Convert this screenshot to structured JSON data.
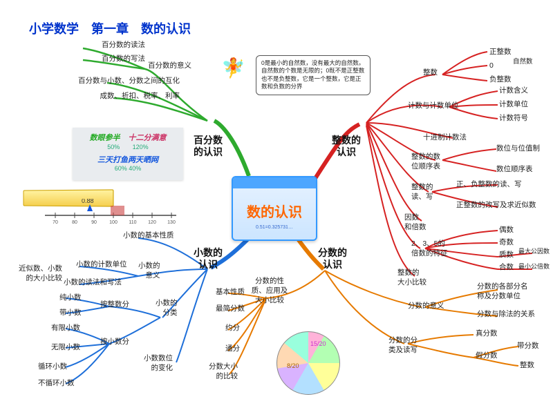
{
  "title": "小学数学　第一章　数的认识",
  "center": {
    "label": "数的认识",
    "formula": "0.51=0.325731…"
  },
  "callout": "0是最小的自然数，没有最大的自然数。自然数的个数是无限的；0既不是正整数也不是负整数，它是一个整数，它是正数和负数的分界",
  "idiom": {
    "a": "数眼参半",
    "a_pct": "50%",
    "b": "十二分满意",
    "b_pct": "120%",
    "c": "三天打鱼两天晒网",
    "c_pct": "60%  40%"
  },
  "number_line": {
    "mark_label": "0.88",
    "ticks": [
      "70",
      "80",
      "90",
      "100",
      "110",
      "120",
      "130"
    ]
  },
  "colors": {
    "green": "#2eaa2e",
    "red": "#d62222",
    "blue": "#1e6fd9",
    "orange": "#e67a00"
  },
  "branches": {
    "percent": {
      "label": "百分数\n的认识",
      "children": [
        {
          "label": "百分数的意义",
          "sub": [
            "百分数的读法",
            "百分数的写法"
          ]
        },
        {
          "label": "百分数与小数、分数之间的互化"
        },
        {
          "label": "成数、折扣、税率、利率"
        }
      ]
    },
    "integer": {
      "label": "整数的\n认识",
      "children": [
        {
          "label": "整数",
          "sub": [
            "正整数",
            "0",
            "负整数"
          ],
          "note": "自然数"
        },
        {
          "label": "计数与计数单位",
          "sub": [
            "计数含义",
            "计数单位",
            "计数符号"
          ]
        },
        {
          "label": "十进制计数法"
        },
        {
          "label": "整数的数\n位顺序表",
          "sub": [
            "数位与位值制",
            "数位顺序表"
          ]
        },
        {
          "label": "整数的\n读、写",
          "sub": [
            "正、负整数的读、写",
            "正整数的改写及求近似数"
          ]
        },
        {
          "label": "因数\n和倍数"
        },
        {
          "label": "2、3、5的\n倍数的特征",
          "sub": [
            "偶数",
            "奇数",
            "质数",
            "合数"
          ],
          "note": [
            "最大公因数",
            "最小公倍数"
          ]
        },
        {
          "label": "整数的\n大小比较"
        }
      ]
    },
    "decimal": {
      "label": "小数的\n认识",
      "children": [
        {
          "label": "小数的基本性质"
        },
        {
          "label": "小数的\n意义",
          "sub": [
            "小数的计数单位",
            "小数的读法和写法"
          ],
          "note": "近似数、小数\n的大小比较"
        },
        {
          "label": "小数的\n分类",
          "sub": [
            {
              "g": "按整数分",
              "items": [
                "纯小数",
                "带小数"
              ]
            },
            {
              "g": "按小数分",
              "items": [
                "有限小数",
                "无限小数",
                "循环小数",
                "不循环小数"
              ]
            }
          ]
        },
        {
          "label": "小数数位\n的变化"
        }
      ]
    },
    "fraction": {
      "label": "分数的\n认识",
      "children": [
        {
          "label": "分数的性\n质、应用及\n大小比较",
          "sub": [
            "基本性质",
            "最简分数",
            "约分",
            "通分",
            "分数大小\n的比较"
          ]
        },
        {
          "label": "分数的意义",
          "sub": [
            "分数的各部分名\n称及分数单位",
            "分数与除法的关系"
          ]
        },
        {
          "label": "分数的分\n类及读写",
          "sub": [
            "真分数",
            "假分数"
          ],
          "sub2": [
            "带分数",
            "整数"
          ]
        }
      ]
    }
  },
  "pie": {
    "labels": [
      "15/20",
      "8/20"
    ]
  }
}
